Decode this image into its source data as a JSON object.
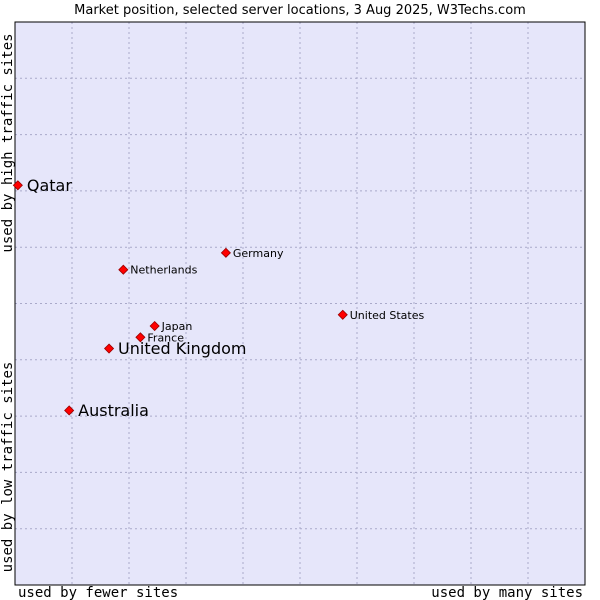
{
  "colors": {
    "plot_background": "#e6e6fa",
    "grid": "#a9a9c9",
    "axis": "#000000",
    "marker": "#ff0000",
    "marker_stroke": "#990000",
    "text": "#000000"
  },
  "chart_data": {
    "type": "scatter",
    "title": "Market position, selected server locations, 3 Aug 2025, W3Techs.com",
    "xlabel_left": "used by fewer sites",
    "xlabel_right": "used by many sites",
    "ylabel_bottom": "used by low traffic sites",
    "ylabel_top": "used by high traffic sites",
    "xlim": [
      0,
      10
    ],
    "ylim": [
      0,
      10
    ],
    "grid": true,
    "points": [
      {
        "label": "Qatar",
        "x": 0.05,
        "y": 7.1,
        "emphasis": "large"
      },
      {
        "label": "Germany",
        "x": 3.7,
        "y": 5.9,
        "emphasis": "small"
      },
      {
        "label": "Netherlands",
        "x": 1.9,
        "y": 5.6,
        "emphasis": "small"
      },
      {
        "label": "United States",
        "x": 5.75,
        "y": 4.8,
        "emphasis": "small"
      },
      {
        "label": "Japan",
        "x": 2.45,
        "y": 4.6,
        "emphasis": "small"
      },
      {
        "label": "France",
        "x": 2.2,
        "y": 4.4,
        "emphasis": "small"
      },
      {
        "label": "United Kingdom",
        "x": 1.65,
        "y": 4.2,
        "emphasis": "large"
      },
      {
        "label": "Australia",
        "x": 0.95,
        "y": 3.1,
        "emphasis": "large"
      }
    ]
  }
}
